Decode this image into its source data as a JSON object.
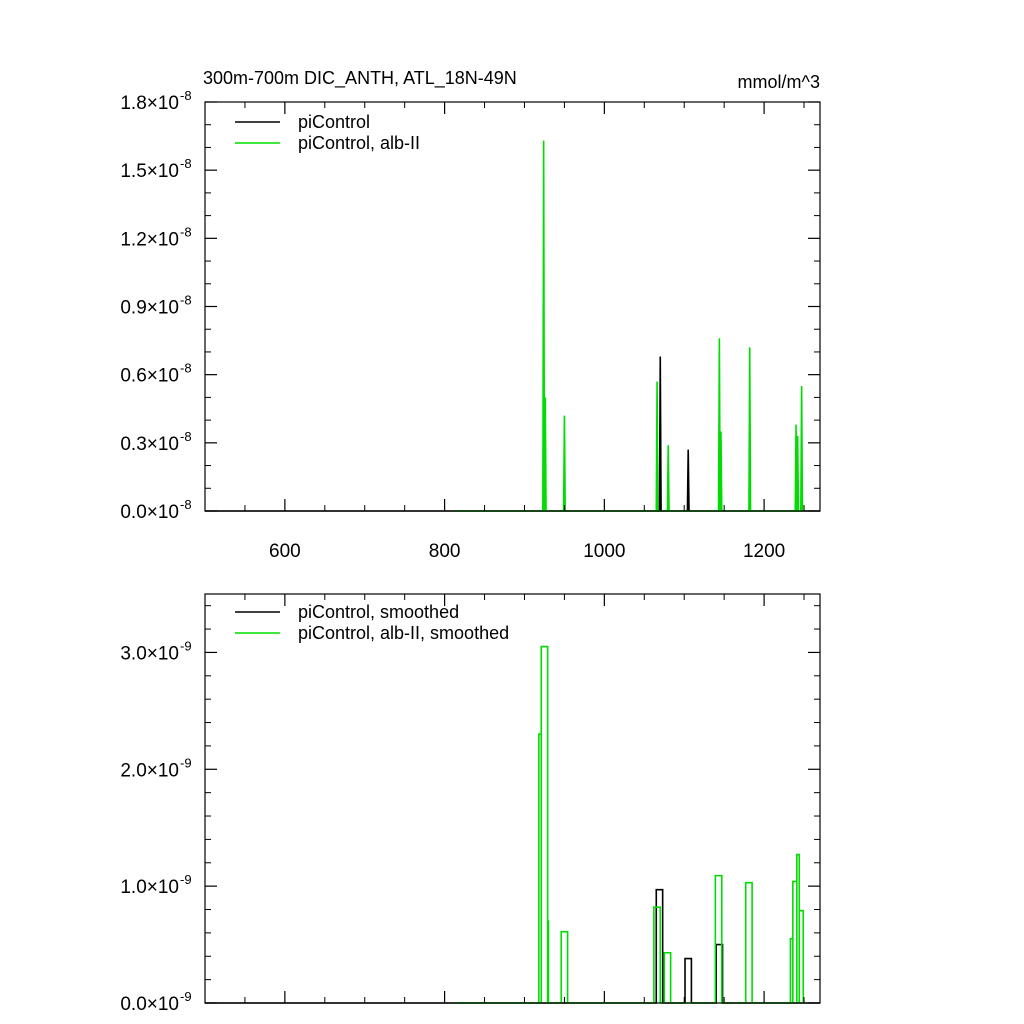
{
  "chart_data": [
    {
      "type": "line",
      "title": "300m-700m DIC_ANTH, ATL_18N-49N",
      "units": "mmol/m^3",
      "xlim": [
        500,
        1270
      ],
      "ylim": [
        0,
        1.8e-08
      ],
      "x_ticks": [
        600,
        800,
        1000,
        1200
      ],
      "x_tick_labels": [
        "600",
        "800",
        "1000",
        "1200"
      ],
      "y_ticks": [
        {
          "mantissa": "0.0",
          "exp": "-8",
          "value": 0
        },
        {
          "mantissa": "0.3",
          "exp": "-8",
          "value": 3e-09
        },
        {
          "mantissa": "0.6",
          "exp": "-8",
          "value": 6e-09
        },
        {
          "mantissa": "0.9",
          "exp": "-8",
          "value": 9e-09
        },
        {
          "mantissa": "1.2",
          "exp": "-8",
          "value": 1.2e-08
        },
        {
          "mantissa": "1.5",
          "exp": "-8",
          "value": 1.5e-08
        },
        {
          "mantissa": "1.8",
          "exp": "-8",
          "value": 1.8e-08
        }
      ],
      "legend_position": "top-left",
      "series": [
        {
          "name": "piControl",
          "color": "#000000",
          "x_start": 500,
          "x_end": 1270,
          "spikes": [
            [
              1070,
              6.8e-09
            ],
            [
              1105,
              2.7e-09
            ]
          ]
        },
        {
          "name": "piControl, alb-II",
          "color": "#00dd00",
          "x_start": 812,
          "x_end": 1250,
          "spikes": [
            [
              924,
              1.63e-08
            ],
            [
              926,
              5e-09
            ],
            [
              950,
              4.2e-09
            ],
            [
              1066,
              5.7e-09
            ],
            [
              1080,
              2.9e-09
            ],
            [
              1144,
              7.6e-09
            ],
            [
              1146,
              3.5e-09
            ],
            [
              1182,
              7.2e-09
            ],
            [
              1240,
              3.8e-09
            ],
            [
              1242,
              3.3e-09
            ],
            [
              1247,
              5.5e-09
            ]
          ]
        }
      ]
    },
    {
      "type": "line",
      "title": "",
      "xlim": [
        500,
        1270
      ],
      "ylim": [
        0,
        3.5e-09
      ],
      "x_ticks": [
        600,
        800,
        1000,
        1200
      ],
      "x_tick_labels": [],
      "y_ticks": [
        {
          "mantissa": "0.0",
          "exp": "-9",
          "value": 0
        },
        {
          "mantissa": "1.0",
          "exp": "-9",
          "value": 1e-09
        },
        {
          "mantissa": "2.0",
          "exp": "-9",
          "value": 2e-09
        },
        {
          "mantissa": "3.0",
          "exp": "-9",
          "value": 3e-09
        }
      ],
      "legend_position": "top-left",
      "series": [
        {
          "name": "piControl, smoothed",
          "color": "#000000",
          "x_start": 500,
          "x_end": 1270,
          "pulses": [
            [
              1065,
              1073,
              9.7e-10
            ],
            [
              1101,
              1109,
              3.8e-10
            ],
            [
              1140,
              1148,
              5e-10
            ]
          ]
        },
        {
          "name": "piControl, alb-II, smoothed",
          "color": "#00dd00",
          "x_start": 812,
          "x_end": 1252,
          "pulses": [
            [
              918,
              921,
              2.3e-09
            ],
            [
              921,
              929,
              3.05e-09
            ],
            [
              929,
              930,
              7e-10
            ],
            [
              946,
              954,
              6.1e-10
            ],
            [
              1062,
              1070,
              8.2e-10
            ],
            [
              1075,
              1083,
              4.3e-10
            ],
            [
              1139,
              1147,
              1.09e-09
            ],
            [
              1177,
              1185,
              1.03e-09
            ],
            [
              1233,
              1236,
              5.5e-10
            ],
            [
              1236,
              1241,
              1.04e-09
            ],
            [
              1241,
              1244,
              1.27e-09
            ],
            [
              1244,
              1249,
              7.9e-10
            ]
          ]
        }
      ]
    }
  ]
}
